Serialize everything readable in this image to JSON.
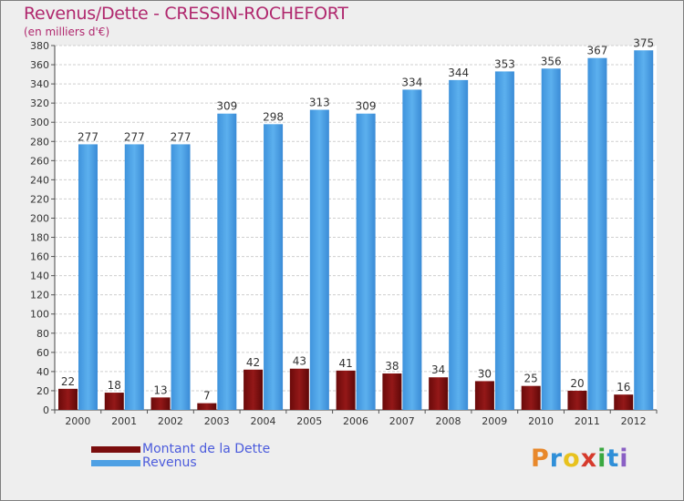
{
  "chart_data": {
    "type": "bar",
    "title": "Revenus/Dette - CRESSIN-ROCHEFORT",
    "subtitle": "(en milliers d'€)",
    "categories": [
      "2000",
      "2001",
      "2002",
      "2003",
      "2004",
      "2005",
      "2006",
      "2007",
      "2008",
      "2009",
      "2010",
      "2011",
      "2012"
    ],
    "series": [
      {
        "name": "Montant de la Dette",
        "color": "#7a0d0d",
        "values": [
          22,
          18,
          13,
          7,
          42,
          43,
          41,
          38,
          34,
          30,
          25,
          20,
          16
        ]
      },
      {
        "name": "Revenus",
        "color": "#4ea0e4",
        "values": [
          277,
          277,
          277,
          309,
          298,
          313,
          309,
          334,
          344,
          353,
          356,
          367,
          375
        ]
      }
    ],
    "ylim": [
      0,
      380
    ],
    "ytick_step": 20,
    "grid": true,
    "legend_position": "bottom-left"
  },
  "logo": {
    "letters": [
      "P",
      "r",
      "o",
      "x",
      "i",
      "t",
      "i"
    ],
    "colors": [
      "#e8882b",
      "#2f8fd8",
      "#e8c21e",
      "#d63a2c",
      "#3aa840",
      "#2f8fd8",
      "#8a5fc4"
    ]
  }
}
